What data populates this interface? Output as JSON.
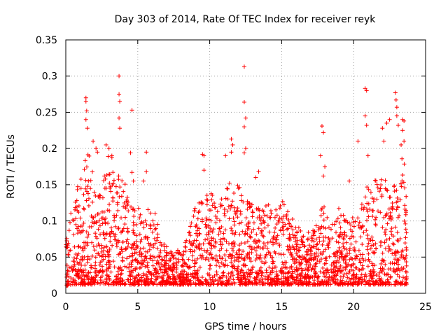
{
  "chart_data": {
    "type": "scatter",
    "title": "Day 303 of 2014, Rate Of TEC Index for receiver reyk",
    "xlabel": "GPS time / hours",
    "ylabel": "ROTI / TECUs",
    "xlim": [
      0,
      25
    ],
    "ylim": [
      0,
      0.35
    ],
    "xticks": [
      0,
      5,
      10,
      15,
      20,
      25
    ],
    "xtick_labels": [
      "0",
      "5",
      "10",
      "15",
      "20",
      "25"
    ],
    "yticks": [
      0,
      0.05,
      0.1,
      0.15,
      0.2,
      0.25,
      0.3,
      0.35
    ],
    "ytick_labels": [
      "0",
      "0.05",
      "0.1",
      "0.15",
      "0.2",
      "0.25",
      "0.3",
      "0.35"
    ],
    "grid": true,
    "marker": "+",
    "color": "#ff0000",
    "series": [
      {
        "name": "ROTI",
        "envelope": {
          "x": [
            0.0,
            0.5,
            1.0,
            1.5,
            2.0,
            2.5,
            3.0,
            3.5,
            4.0,
            4.5,
            5.0,
            5.5,
            6.0,
            6.5,
            7.0,
            7.5,
            8.0,
            8.5,
            9.0,
            9.5,
            10.0,
            10.5,
            11.0,
            11.5,
            12.0,
            12.5,
            13.0,
            13.5,
            14.0,
            14.5,
            15.0,
            15.5,
            16.0,
            16.5,
            17.0,
            17.5,
            18.0,
            18.5,
            19.0,
            19.5,
            20.0,
            20.5,
            21.0,
            21.5,
            22.0,
            22.5,
            23.0,
            23.5,
            23.7
          ],
          "upper": [
            0.07,
            0.13,
            0.16,
            0.2,
            0.16,
            0.15,
            0.2,
            0.17,
            0.16,
            0.13,
            0.12,
            0.11,
            0.13,
            0.09,
            0.07,
            0.06,
            0.06,
            0.08,
            0.12,
            0.13,
            0.14,
            0.13,
            0.14,
            0.16,
            0.15,
            0.14,
            0.13,
            0.12,
            0.13,
            0.12,
            0.13,
            0.11,
            0.1,
            0.08,
            0.09,
            0.1,
            0.13,
            0.1,
            0.12,
            0.1,
            0.11,
            0.13,
            0.15,
            0.17,
            0.16,
            0.15,
            0.18,
            0.19,
            0.12
          ],
          "lower": [
            0.01,
            0.012,
            0.012,
            0.012,
            0.012,
            0.012,
            0.012,
            0.012,
            0.012,
            0.012,
            0.012,
            0.012,
            0.012,
            0.012,
            0.012,
            0.012,
            0.012,
            0.012,
            0.012,
            0.012,
            0.012,
            0.012,
            0.012,
            0.012,
            0.012,
            0.012,
            0.012,
            0.012,
            0.012,
            0.012,
            0.012,
            0.012,
            0.012,
            0.012,
            0.012,
            0.012,
            0.012,
            0.012,
            0.012,
            0.012,
            0.012,
            0.012,
            0.012,
            0.012,
            0.012,
            0.012,
            0.012,
            0.012,
            0.012
          ]
        },
        "points": [
          {
            "x": 1.4,
            "y": 0.27
          },
          {
            "x": 1.4,
            "y": 0.265
          },
          {
            "x": 1.45,
            "y": 0.252
          },
          {
            "x": 1.4,
            "y": 0.24
          },
          {
            "x": 1.5,
            "y": 0.228
          },
          {
            "x": 1.9,
            "y": 0.21
          },
          {
            "x": 2.1,
            "y": 0.2
          },
          {
            "x": 2.2,
            "y": 0.195
          },
          {
            "x": 2.8,
            "y": 0.205
          },
          {
            "x": 3.0,
            "y": 0.2
          },
          {
            "x": 3.2,
            "y": 0.19
          },
          {
            "x": 3.7,
            "y": 0.3
          },
          {
            "x": 3.7,
            "y": 0.275
          },
          {
            "x": 3.75,
            "y": 0.265
          },
          {
            "x": 3.7,
            "y": 0.242
          },
          {
            "x": 3.75,
            "y": 0.228
          },
          {
            "x": 4.6,
            "y": 0.253
          },
          {
            "x": 4.5,
            "y": 0.194
          },
          {
            "x": 4.6,
            "y": 0.167
          },
          {
            "x": 4.7,
            "y": 0.155
          },
          {
            "x": 5.4,
            "y": 0.155
          },
          {
            "x": 5.6,
            "y": 0.195
          },
          {
            "x": 5.6,
            "y": 0.168
          },
          {
            "x": 9.5,
            "y": 0.192
          },
          {
            "x": 9.6,
            "y": 0.19
          },
          {
            "x": 9.6,
            "y": 0.17
          },
          {
            "x": 11.1,
            "y": 0.19
          },
          {
            "x": 11.5,
            "y": 0.213
          },
          {
            "x": 11.6,
            "y": 0.205
          },
          {
            "x": 11.5,
            "y": 0.195
          },
          {
            "x": 12.4,
            "y": 0.313
          },
          {
            "x": 12.4,
            "y": 0.264
          },
          {
            "x": 12.5,
            "y": 0.242
          },
          {
            "x": 12.4,
            "y": 0.23
          },
          {
            "x": 12.5,
            "y": 0.2
          },
          {
            "x": 12.4,
            "y": 0.194
          },
          {
            "x": 13.4,
            "y": 0.168
          },
          {
            "x": 13.2,
            "y": 0.16
          },
          {
            "x": 17.8,
            "y": 0.231
          },
          {
            "x": 17.9,
            "y": 0.222
          },
          {
            "x": 17.7,
            "y": 0.19
          },
          {
            "x": 18.0,
            "y": 0.175
          },
          {
            "x": 17.9,
            "y": 0.162
          },
          {
            "x": 19.7,
            "y": 0.155
          },
          {
            "x": 20.3,
            "y": 0.21
          },
          {
            "x": 20.8,
            "y": 0.283
          },
          {
            "x": 20.9,
            "y": 0.28
          },
          {
            "x": 20.8,
            "y": 0.245
          },
          {
            "x": 20.9,
            "y": 0.232
          },
          {
            "x": 21.0,
            "y": 0.19
          },
          {
            "x": 22.0,
            "y": 0.228
          },
          {
            "x": 22.1,
            "y": 0.21
          },
          {
            "x": 22.3,
            "y": 0.235
          },
          {
            "x": 22.5,
            "y": 0.24
          },
          {
            "x": 22.9,
            "y": 0.277
          },
          {
            "x": 22.95,
            "y": 0.267
          },
          {
            "x": 23.0,
            "y": 0.257
          },
          {
            "x": 23.0,
            "y": 0.245
          },
          {
            "x": 23.1,
            "y": 0.232
          },
          {
            "x": 23.4,
            "y": 0.24
          },
          {
            "x": 23.5,
            "y": 0.238
          },
          {
            "x": 23.4,
            "y": 0.225
          },
          {
            "x": 23.5,
            "y": 0.21
          },
          {
            "x": 23.3,
            "y": 0.205
          }
        ]
      }
    ]
  }
}
